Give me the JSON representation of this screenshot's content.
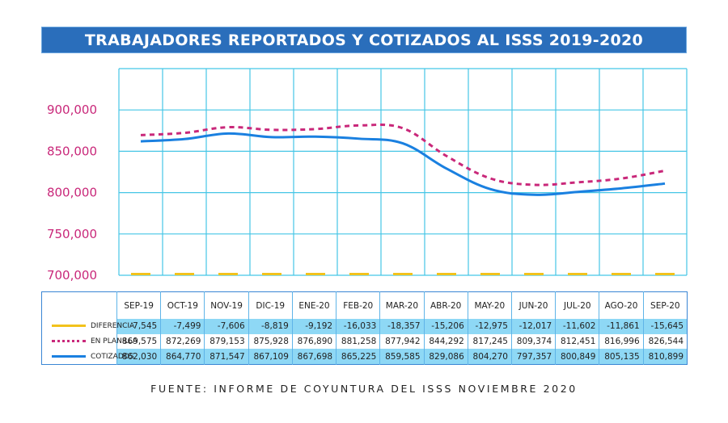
{
  "title": "TRABAJADORES REPORTADOS Y COTIZADOS AL ISSS 2019-2020",
  "footer": "FUENTE: INFORME DE COYUNTURA DEL ISSS NOVIEMBRE 2020",
  "colors": {
    "title_bg": "#2a6ebb",
    "grid": "#45c6e6",
    "ytick": "#c9287a",
    "cotizados": "#1a80e0",
    "en_planilla": "#c9287a",
    "diferencia": "#f2c21b",
    "table_alt_row": "#8ed8f5"
  },
  "chart_data": {
    "type": "line",
    "title": "TRABAJADORES REPORTADOS Y COTIZADOS AL ISSS 2019-2020",
    "xlabel": "",
    "ylabel": "",
    "ylim": [
      700000,
      920000
    ],
    "yticks": [
      700000,
      750000,
      800000,
      850000,
      900000
    ],
    "ytick_labels": [
      "700,000",
      "750,000",
      "800,000",
      "850,000",
      "900,000"
    ],
    "grid": true,
    "categories": [
      "SEP-19",
      "OCT-19",
      "NOV-19",
      "DIC-19",
      "ENE-20",
      "FEB-20",
      "MAR-20",
      "ABR-20",
      "MAY-20",
      "JUN-20",
      "JUL-20",
      "AGO-20",
      "SEP-20"
    ],
    "series": [
      {
        "name": "DIFERENCIA",
        "style": "bar-marker",
        "values": [
          -7545,
          -7499,
          -7606,
          -8819,
          -9192,
          -16033,
          -18357,
          -15206,
          -12975,
          -12017,
          -11602,
          -11861,
          -15645
        ],
        "labels": [
          "-7,545",
          "-7,499",
          "-7,606",
          "-8,819",
          "-9,192",
          "-16,033",
          "-18,357",
          "-15,206",
          "-12,975",
          "-12,017",
          "-11,602",
          "-11,861",
          "-15,645"
        ]
      },
      {
        "name": "EN PLANILLA",
        "style": "dotted",
        "values": [
          869575,
          872269,
          879153,
          875928,
          876890,
          881258,
          877942,
          844292,
          817245,
          809374,
          812451,
          816996,
          826544
        ],
        "labels": [
          "869,575",
          "872,269",
          "879,153",
          "875,928",
          "876,890",
          "881,258",
          "877,942",
          "844,292",
          "817,245",
          "809,374",
          "812,451",
          "816,996",
          "826,544"
        ]
      },
      {
        "name": "COTIZADOS",
        "style": "solid",
        "values": [
          862030,
          864770,
          871547,
          867109,
          867698,
          865225,
          859585,
          829086,
          804270,
          797357,
          800849,
          805135,
          810899
        ],
        "labels": [
          "862,030",
          "864,770",
          "871,547",
          "867,109",
          "867,698",
          "865,225",
          "859,585",
          "829,086",
          "804,270",
          "797,357",
          "800,849",
          "805,135",
          "810,899"
        ]
      }
    ],
    "legend": "table-left"
  }
}
